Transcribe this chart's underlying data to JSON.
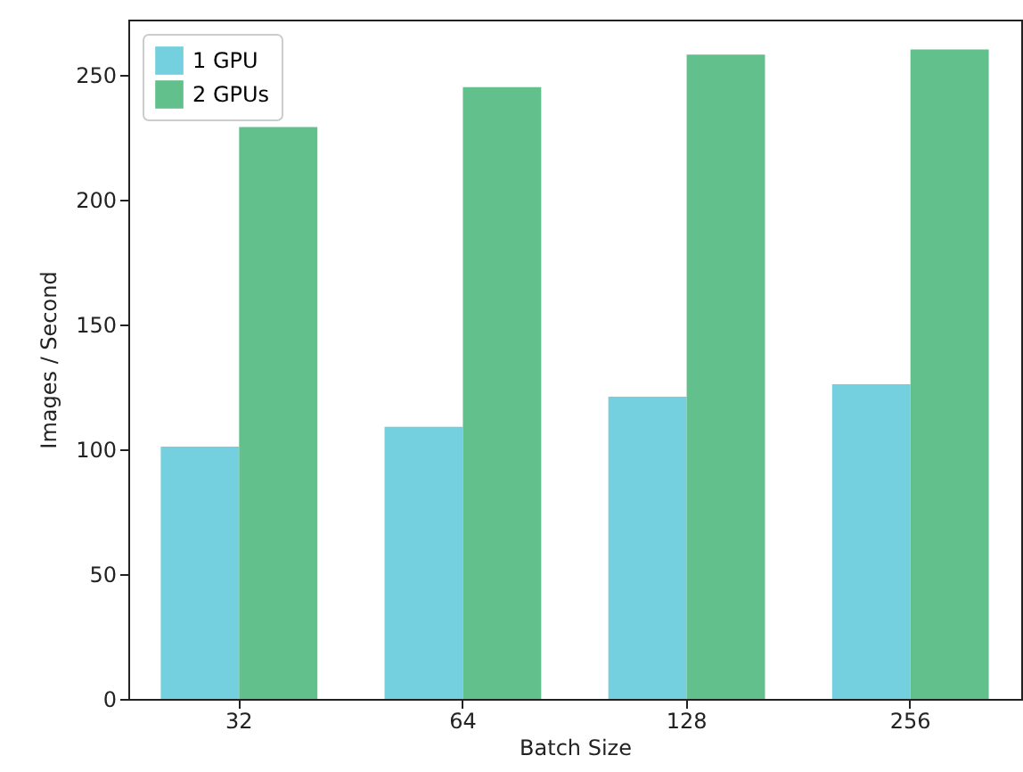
{
  "chart_data": {
    "type": "bar",
    "xlabel": "Batch Size",
    "ylabel": "Images / Second",
    "categories": [
      "32",
      "64",
      "128",
      "256"
    ],
    "series": [
      {
        "name": "1 GPU",
        "color": "#74cfde",
        "values": [
          101,
          109,
          121,
          126
        ]
      },
      {
        "name": "2 GPUs",
        "color": "#62c08c",
        "values": [
          229,
          245,
          258,
          260
        ]
      }
    ],
    "ylim": [
      0,
      272
    ],
    "yticks": [
      0,
      50,
      100,
      150,
      200,
      250
    ],
    "legend": "top left"
  }
}
